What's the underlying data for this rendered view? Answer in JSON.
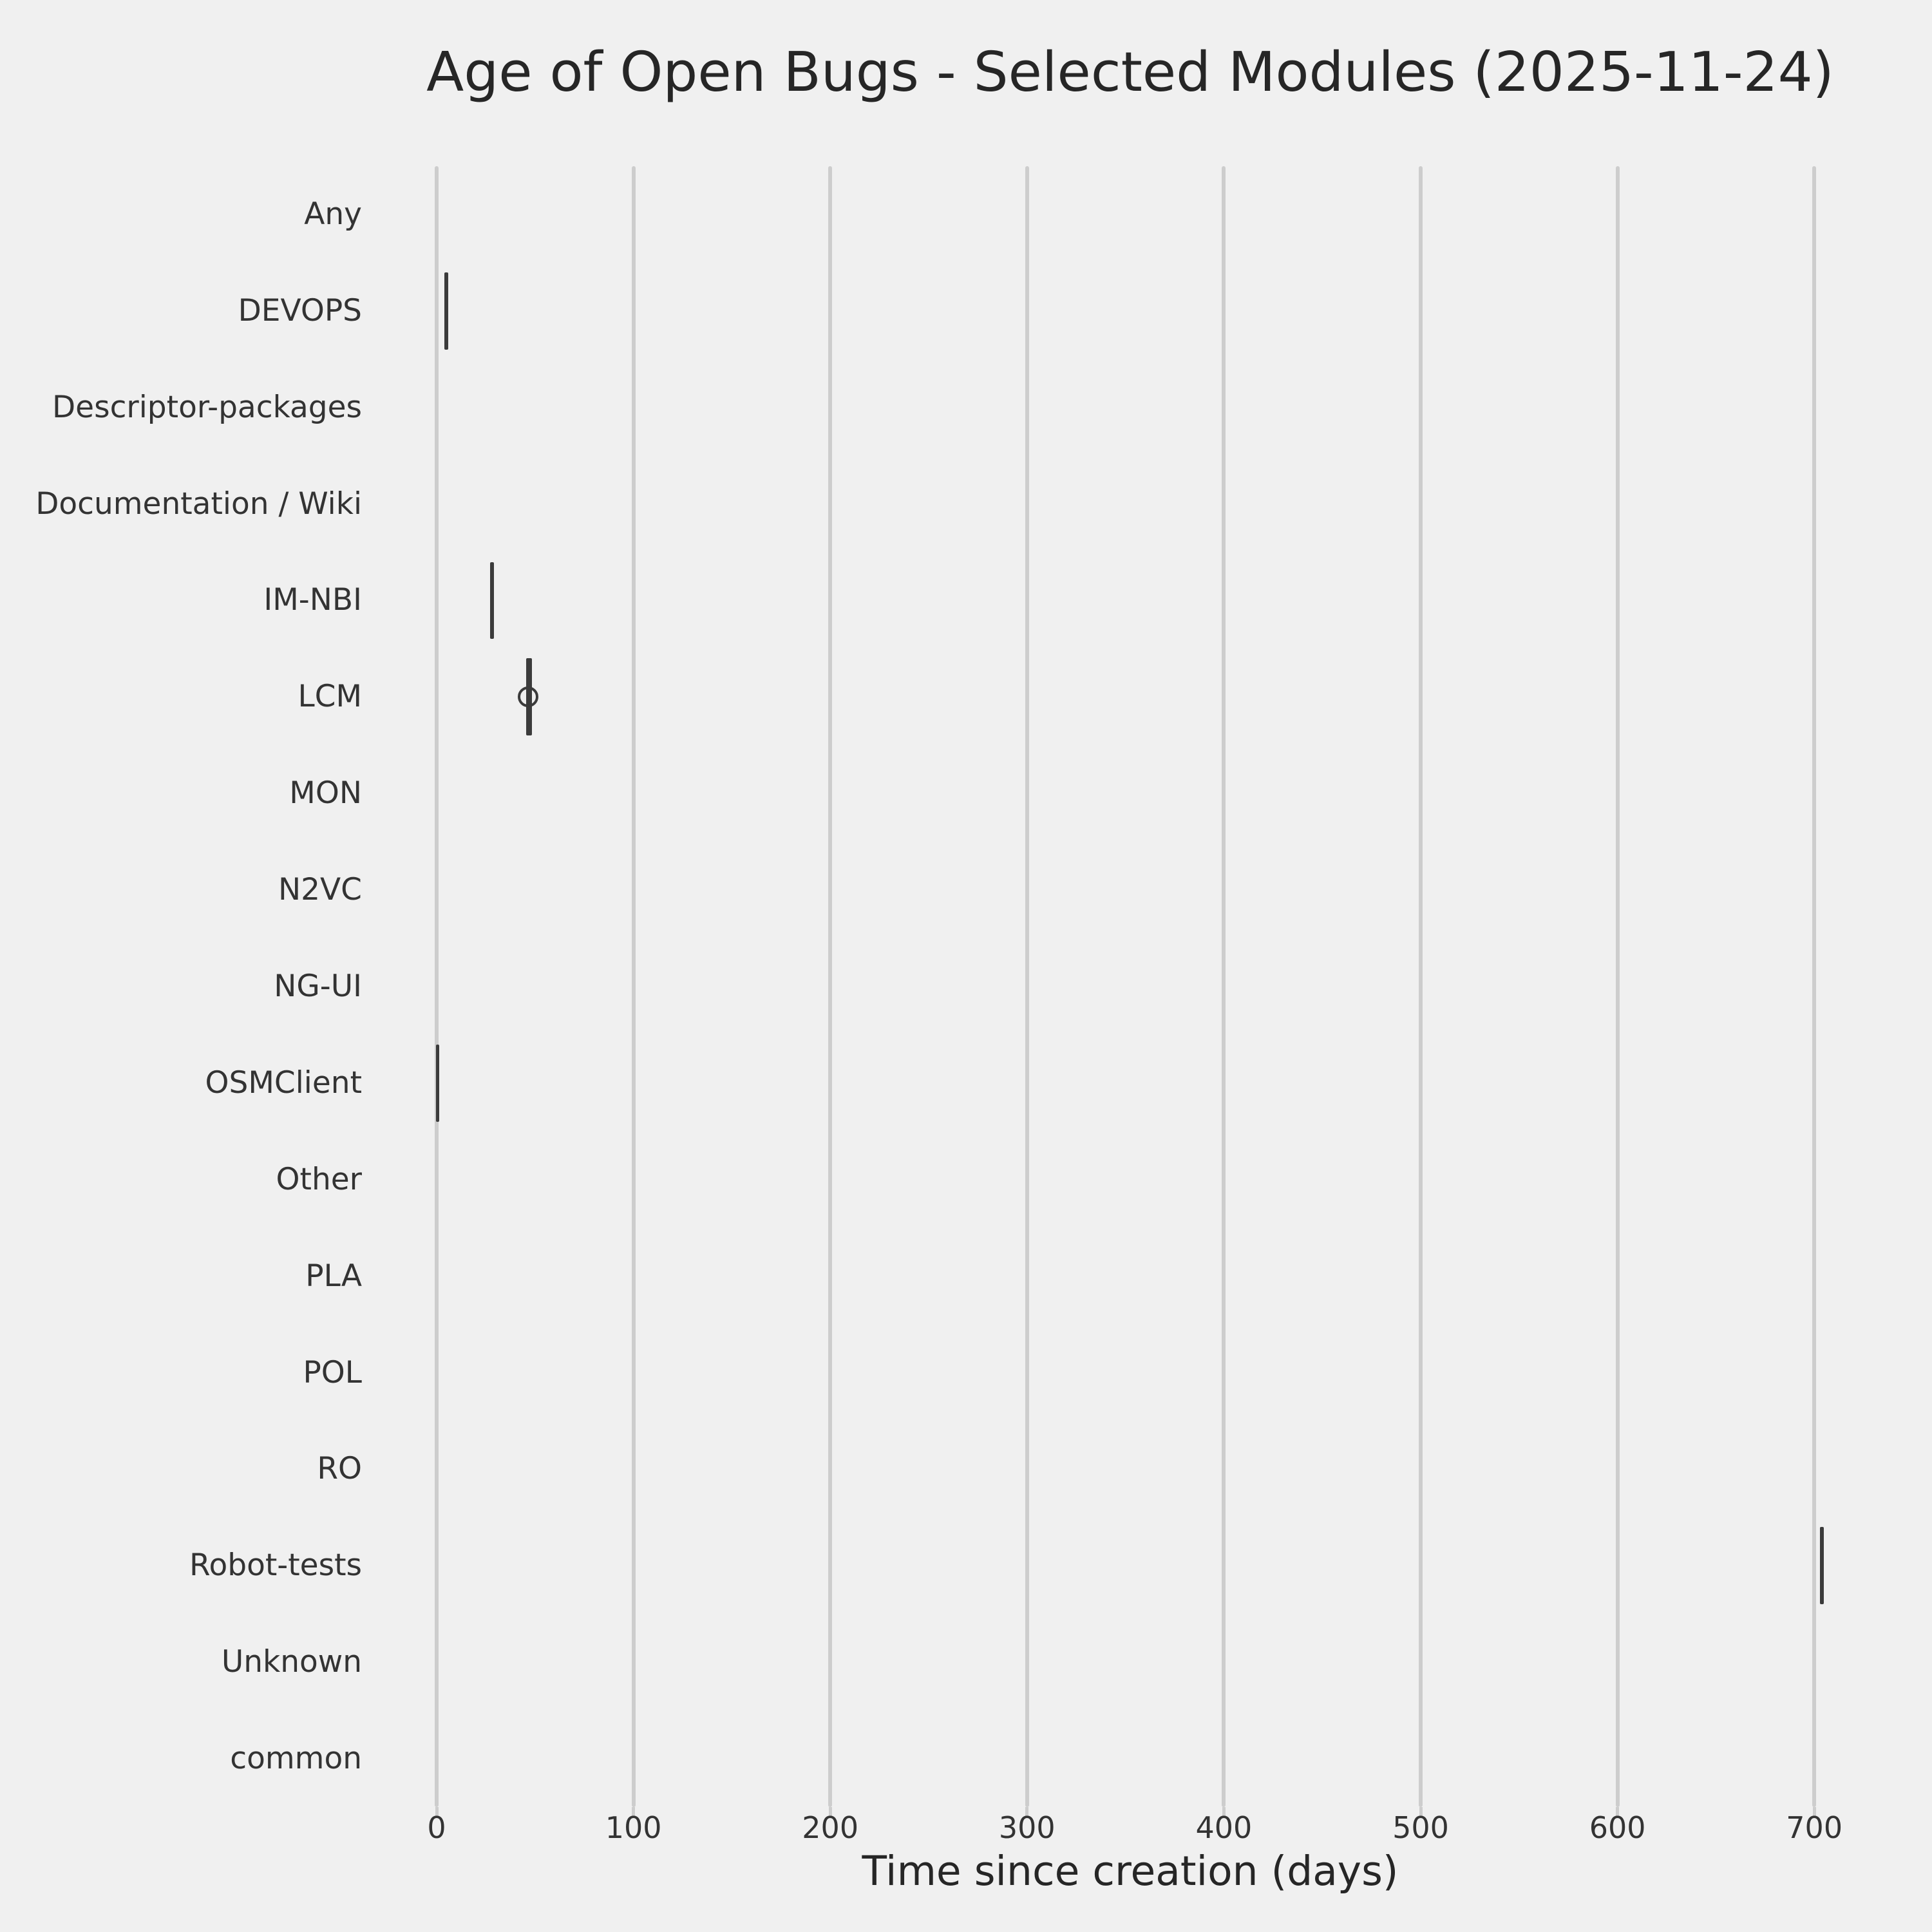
{
  "page": {
    "background": "#f0f0f0"
  },
  "chart_data": {
    "type": "boxplot",
    "orientation": "horizontal",
    "title": "Age of Open Bugs - Selected Modules (2025-11-24)",
    "xlabel": "Time since creation (days)",
    "ylabel": "",
    "categories": [
      "Any",
      "DEVOPS",
      "Descriptor-packages",
      "Documentation / Wiki",
      "IM-NBI",
      "LCM",
      "MON",
      "N2VC",
      "NG-UI",
      "OSMClient",
      "Other",
      "PLA",
      "POL",
      "RO",
      "Robot-tests",
      "Unknown",
      "common"
    ],
    "x_ticks": [
      0,
      100,
      200,
      300,
      400,
      500,
      600,
      700
    ],
    "xlim": [
      -35,
      740
    ],
    "grid": "vertical-gridlines-on",
    "legend": "none",
    "boxes": [
      {
        "category": "DEVOPS",
        "median": 5,
        "min": 4,
        "max": 6
      },
      {
        "category": "IM-NBI",
        "median": 28,
        "min": 27,
        "max": 29
      },
      {
        "category": "LCM",
        "median": 47,
        "min": 45.5,
        "max": 48.5
      },
      {
        "category": "OSMClient",
        "median": 0.5,
        "min": 0,
        "max": 1
      },
      {
        "category": "Robot-tests",
        "median": 704,
        "min": 703,
        "max": 705
      }
    ],
    "fliers": [
      {
        "category": "LCM",
        "value": 46.5
      }
    ],
    "colors": {
      "background": "#f0f0f0",
      "grid": "#cdcdcd",
      "box_line": "#3b3b3b",
      "text": "#262626",
      "tick_text": "#333333"
    }
  }
}
